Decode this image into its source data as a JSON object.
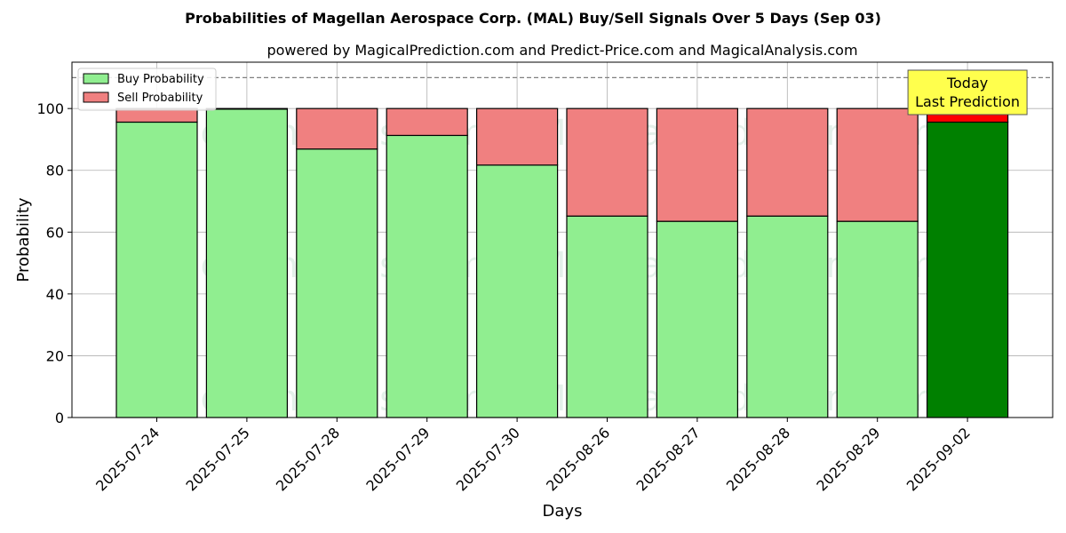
{
  "chart_data": {
    "type": "bar",
    "stacked": true,
    "title": "Probabilities of Magellan Aerospace Corp. (MAL) Buy/Sell Signals Over 5 Days (Sep 03)",
    "subtitle": "powered by MagicalPrediction.com and Predict-Price.com and MagicalAnalysis.com",
    "xlabel": "Days",
    "ylabel": "Probability",
    "ylim": [
      0,
      115
    ],
    "yticks": [
      0,
      20,
      40,
      60,
      80,
      100
    ],
    "reference_line": 110,
    "grid": true,
    "legend_position": "top-left",
    "categories": [
      "2025-07-24",
      "2025-07-25",
      "2025-07-28",
      "2025-07-29",
      "2025-07-30",
      "2025-08-26",
      "2025-08-27",
      "2025-08-28",
      "2025-08-29",
      "2025-09-02"
    ],
    "series": [
      {
        "name": "Buy Probability",
        "color": "#90ee90",
        "values": [
          95.6,
          99.8,
          86.9,
          91.3,
          81.7,
          65.2,
          63.5,
          65.2,
          63.5,
          95.6
        ]
      },
      {
        "name": "Sell Probability",
        "color": "#f08080",
        "values": [
          4.4,
          0.2,
          13.1,
          8.7,
          18.3,
          34.8,
          36.5,
          34.8,
          36.5,
          4.4
        ]
      }
    ],
    "highlight": {
      "index": 9,
      "buy_color": "#008000",
      "sell_color": "#ff0000"
    },
    "annotation": {
      "line1": "Today",
      "line2": "Last Prediction",
      "color": "#ffff4d"
    },
    "watermarks": [
      "MagicalAnalysis.com",
      "MagicalPrediction.com"
    ]
  }
}
